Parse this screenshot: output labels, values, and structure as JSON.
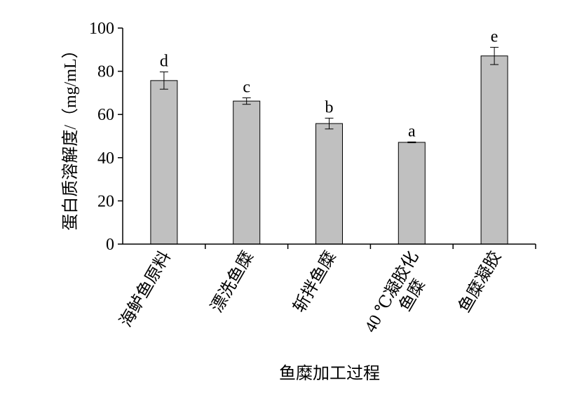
{
  "chart_data": {
    "type": "bar",
    "y_label": "蛋白质溶解度/（mg/mL）",
    "x_label": "鱼糜加工过程",
    "categories": [
      "海鲈鱼原料",
      "漂洗鱼糜",
      "斩拌鱼糜",
      [
        "40 ℃凝胶化",
        "鱼糜"
      ],
      "鱼糜凝胶"
    ],
    "values": [
      75.7,
      66.2,
      55.8,
      47.1,
      87.1
    ],
    "errors": [
      4,
      1.5,
      2.5,
      0.2,
      4
    ],
    "annotations": [
      "d",
      "c",
      "b",
      "a",
      "e"
    ],
    "color": "#c0c0c0",
    "ylim": [
      0,
      100
    ],
    "yticks": [
      0,
      20,
      40,
      60,
      80,
      100
    ]
  }
}
